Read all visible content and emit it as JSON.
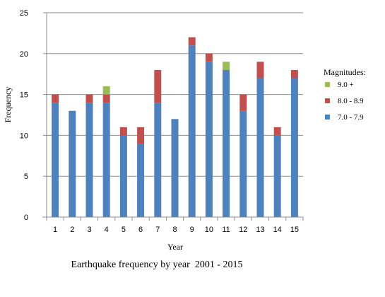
{
  "chart_data": {
    "type": "bar",
    "stacked": true,
    "xlabel": "Year",
    "ylabel": "Frequency",
    "caption": "Earthquake frequency by year  2001 - 2015",
    "ylim": [
      0,
      25
    ],
    "yticks": [
      0,
      5,
      10,
      15,
      20,
      25
    ],
    "grid": true,
    "legend_position": "right",
    "legend_title": "Magnitudes:",
    "categories": [
      "1",
      "2",
      "3",
      "4",
      "5",
      "6",
      "7",
      "8",
      "9",
      "10",
      "11",
      "12",
      "13",
      "14",
      "15"
    ],
    "series": [
      {
        "name": "7.0 - 7.9",
        "color": "#4f81bd",
        "values": [
          14,
          13,
          14,
          14,
          10,
          9,
          14,
          12,
          21,
          19,
          18,
          13,
          17,
          10,
          17
        ]
      },
      {
        "name": "8.0 - 8.9",
        "color": "#c0504d",
        "values": [
          1,
          0,
          1,
          1,
          1,
          2,
          4,
          0,
          1,
          1,
          0,
          2,
          2,
          1,
          1
        ]
      },
      {
        "name": "9.0 +",
        "color": "#9bbb59",
        "values": [
          0,
          0,
          0,
          1,
          0,
          0,
          0,
          0,
          0,
          0,
          1,
          0,
          0,
          0,
          0
        ]
      }
    ],
    "legend_order": [
      "9.0 +",
      "8.0 - 8.9",
      "7.0 - 7.9"
    ]
  }
}
